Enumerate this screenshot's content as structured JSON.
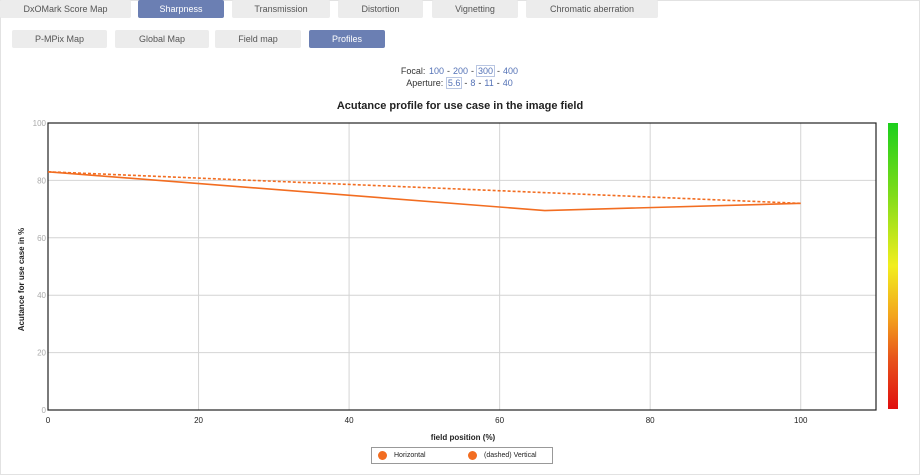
{
  "tabs": [
    {
      "label": "DxOMark Score Map",
      "active": false
    },
    {
      "label": "Sharpness",
      "active": true
    },
    {
      "label": "Transmission",
      "active": false
    },
    {
      "label": "Distortion",
      "active": false
    },
    {
      "label": "Vignetting",
      "active": false
    },
    {
      "label": "Chromatic aberration",
      "active": false
    }
  ],
  "subtabs": [
    {
      "label": "P-MPix Map",
      "active": false
    },
    {
      "label": "Global Map",
      "active": false
    },
    {
      "label": "Field map",
      "active": false
    },
    {
      "label": "Profiles",
      "active": true
    }
  ],
  "focal": {
    "label": "Focal:",
    "options": [
      "100",
      "200",
      "300",
      "400"
    ],
    "selected": "300"
  },
  "aperture": {
    "label": "Aperture:",
    "options": [
      "5.6",
      "8",
      "11",
      "40"
    ],
    "selected": "5.6"
  },
  "chart_data": {
    "type": "line",
    "title": "Acutance profile for use case in the image field",
    "xlabel": "field position (%)",
    "ylabel": "Acutance for use case in %",
    "xlim": [
      0,
      110
    ],
    "ylim": [
      0,
      100
    ],
    "xticks": [
      "0",
      "20",
      "40",
      "60",
      "80",
      "100"
    ],
    "yticks": [
      "0",
      "20",
      "40",
      "60",
      "80",
      "100"
    ],
    "grid": true,
    "legend_position": "bottom-center",
    "series_color": "#f26d21",
    "series": [
      {
        "name": "Horizontal",
        "style": "solid",
        "x": [
          0,
          66,
          100
        ],
        "y": [
          83,
          69.5,
          72
        ]
      },
      {
        "name": "(dashed) Vertical",
        "style": "dashed",
        "x": [
          0,
          100
        ],
        "y": [
          83,
          72
        ]
      }
    ],
    "colorbar": {
      "colors": [
        "#1ccf1c",
        "#f2ee1e",
        "#e00f0f"
      ]
    }
  }
}
